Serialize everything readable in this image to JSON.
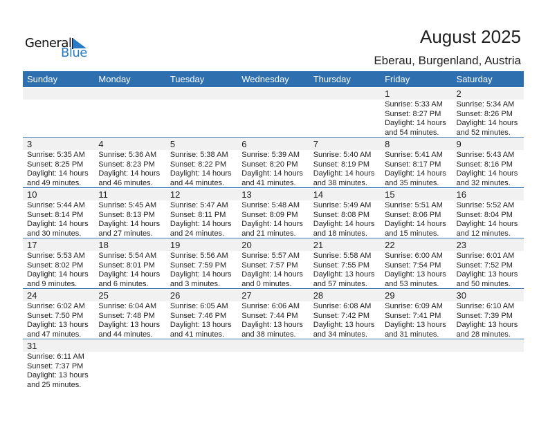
{
  "logo": {
    "line1": "General",
    "line2": "Blue"
  },
  "title": "August 2025",
  "location": "Eberau, Burgenland, Austria",
  "colors": {
    "header": "#2e6fb0",
    "accent": "#2a7bc4",
    "day_band": "#f1f1f1"
  },
  "weekdays": [
    "Sunday",
    "Monday",
    "Tuesday",
    "Wednesday",
    "Thursday",
    "Friday",
    "Saturday"
  ],
  "weeks": [
    [
      null,
      null,
      null,
      null,
      null,
      {
        "day": "1",
        "sunrise": "Sunrise: 5:33 AM",
        "sunset": "Sunset: 8:27 PM",
        "daylight1": "Daylight: 14 hours",
        "daylight2": "and 54 minutes."
      },
      {
        "day": "2",
        "sunrise": "Sunrise: 5:34 AM",
        "sunset": "Sunset: 8:26 PM",
        "daylight1": "Daylight: 14 hours",
        "daylight2": "and 52 minutes."
      }
    ],
    [
      {
        "day": "3",
        "sunrise": "Sunrise: 5:35 AM",
        "sunset": "Sunset: 8:25 PM",
        "daylight1": "Daylight: 14 hours",
        "daylight2": "and 49 minutes."
      },
      {
        "day": "4",
        "sunrise": "Sunrise: 5:36 AM",
        "sunset": "Sunset: 8:23 PM",
        "daylight1": "Daylight: 14 hours",
        "daylight2": "and 46 minutes."
      },
      {
        "day": "5",
        "sunrise": "Sunrise: 5:38 AM",
        "sunset": "Sunset: 8:22 PM",
        "daylight1": "Daylight: 14 hours",
        "daylight2": "and 44 minutes."
      },
      {
        "day": "6",
        "sunrise": "Sunrise: 5:39 AM",
        "sunset": "Sunset: 8:20 PM",
        "daylight1": "Daylight: 14 hours",
        "daylight2": "and 41 minutes."
      },
      {
        "day": "7",
        "sunrise": "Sunrise: 5:40 AM",
        "sunset": "Sunset: 8:19 PM",
        "daylight1": "Daylight: 14 hours",
        "daylight2": "and 38 minutes."
      },
      {
        "day": "8",
        "sunrise": "Sunrise: 5:41 AM",
        "sunset": "Sunset: 8:17 PM",
        "daylight1": "Daylight: 14 hours",
        "daylight2": "and 35 minutes."
      },
      {
        "day": "9",
        "sunrise": "Sunrise: 5:43 AM",
        "sunset": "Sunset: 8:16 PM",
        "daylight1": "Daylight: 14 hours",
        "daylight2": "and 32 minutes."
      }
    ],
    [
      {
        "day": "10",
        "sunrise": "Sunrise: 5:44 AM",
        "sunset": "Sunset: 8:14 PM",
        "daylight1": "Daylight: 14 hours",
        "daylight2": "and 30 minutes."
      },
      {
        "day": "11",
        "sunrise": "Sunrise: 5:45 AM",
        "sunset": "Sunset: 8:13 PM",
        "daylight1": "Daylight: 14 hours",
        "daylight2": "and 27 minutes."
      },
      {
        "day": "12",
        "sunrise": "Sunrise: 5:47 AM",
        "sunset": "Sunset: 8:11 PM",
        "daylight1": "Daylight: 14 hours",
        "daylight2": "and 24 minutes."
      },
      {
        "day": "13",
        "sunrise": "Sunrise: 5:48 AM",
        "sunset": "Sunset: 8:09 PM",
        "daylight1": "Daylight: 14 hours",
        "daylight2": "and 21 minutes."
      },
      {
        "day": "14",
        "sunrise": "Sunrise: 5:49 AM",
        "sunset": "Sunset: 8:08 PM",
        "daylight1": "Daylight: 14 hours",
        "daylight2": "and 18 minutes."
      },
      {
        "day": "15",
        "sunrise": "Sunrise: 5:51 AM",
        "sunset": "Sunset: 8:06 PM",
        "daylight1": "Daylight: 14 hours",
        "daylight2": "and 15 minutes."
      },
      {
        "day": "16",
        "sunrise": "Sunrise: 5:52 AM",
        "sunset": "Sunset: 8:04 PM",
        "daylight1": "Daylight: 14 hours",
        "daylight2": "and 12 minutes."
      }
    ],
    [
      {
        "day": "17",
        "sunrise": "Sunrise: 5:53 AM",
        "sunset": "Sunset: 8:02 PM",
        "daylight1": "Daylight: 14 hours",
        "daylight2": "and 9 minutes."
      },
      {
        "day": "18",
        "sunrise": "Sunrise: 5:54 AM",
        "sunset": "Sunset: 8:01 PM",
        "daylight1": "Daylight: 14 hours",
        "daylight2": "and 6 minutes."
      },
      {
        "day": "19",
        "sunrise": "Sunrise: 5:56 AM",
        "sunset": "Sunset: 7:59 PM",
        "daylight1": "Daylight: 14 hours",
        "daylight2": "and 3 minutes."
      },
      {
        "day": "20",
        "sunrise": "Sunrise: 5:57 AM",
        "sunset": "Sunset: 7:57 PM",
        "daylight1": "Daylight: 14 hours",
        "daylight2": "and 0 minutes."
      },
      {
        "day": "21",
        "sunrise": "Sunrise: 5:58 AM",
        "sunset": "Sunset: 7:55 PM",
        "daylight1": "Daylight: 13 hours",
        "daylight2": "and 57 minutes."
      },
      {
        "day": "22",
        "sunrise": "Sunrise: 6:00 AM",
        "sunset": "Sunset: 7:54 PM",
        "daylight1": "Daylight: 13 hours",
        "daylight2": "and 53 minutes."
      },
      {
        "day": "23",
        "sunrise": "Sunrise: 6:01 AM",
        "sunset": "Sunset: 7:52 PM",
        "daylight1": "Daylight: 13 hours",
        "daylight2": "and 50 minutes."
      }
    ],
    [
      {
        "day": "24",
        "sunrise": "Sunrise: 6:02 AM",
        "sunset": "Sunset: 7:50 PM",
        "daylight1": "Daylight: 13 hours",
        "daylight2": "and 47 minutes."
      },
      {
        "day": "25",
        "sunrise": "Sunrise: 6:04 AM",
        "sunset": "Sunset: 7:48 PM",
        "daylight1": "Daylight: 13 hours",
        "daylight2": "and 44 minutes."
      },
      {
        "day": "26",
        "sunrise": "Sunrise: 6:05 AM",
        "sunset": "Sunset: 7:46 PM",
        "daylight1": "Daylight: 13 hours",
        "daylight2": "and 41 minutes."
      },
      {
        "day": "27",
        "sunrise": "Sunrise: 6:06 AM",
        "sunset": "Sunset: 7:44 PM",
        "daylight1": "Daylight: 13 hours",
        "daylight2": "and 38 minutes."
      },
      {
        "day": "28",
        "sunrise": "Sunrise: 6:08 AM",
        "sunset": "Sunset: 7:42 PM",
        "daylight1": "Daylight: 13 hours",
        "daylight2": "and 34 minutes."
      },
      {
        "day": "29",
        "sunrise": "Sunrise: 6:09 AM",
        "sunset": "Sunset: 7:41 PM",
        "daylight1": "Daylight: 13 hours",
        "daylight2": "and 31 minutes."
      },
      {
        "day": "30",
        "sunrise": "Sunrise: 6:10 AM",
        "sunset": "Sunset: 7:39 PM",
        "daylight1": "Daylight: 13 hours",
        "daylight2": "and 28 minutes."
      }
    ],
    [
      {
        "day": "31",
        "sunrise": "Sunrise: 6:11 AM",
        "sunset": "Sunset: 7:37 PM",
        "daylight1": "Daylight: 13 hours",
        "daylight2": "and 25 minutes."
      },
      null,
      null,
      null,
      null,
      null,
      null
    ]
  ]
}
